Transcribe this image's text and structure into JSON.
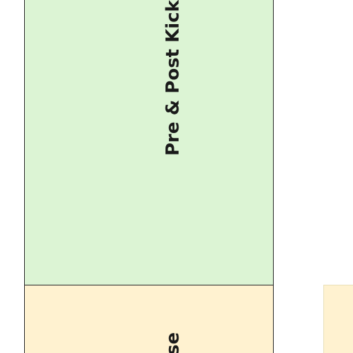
{
  "lanes": [
    {
      "label": "Pre & Post Kicks",
      "color": "#dcf4d4"
    },
    {
      "label": "se",
      "color": "#fff2d0"
    },
    {
      "label": "",
      "color": "#fff2d0"
    }
  ]
}
